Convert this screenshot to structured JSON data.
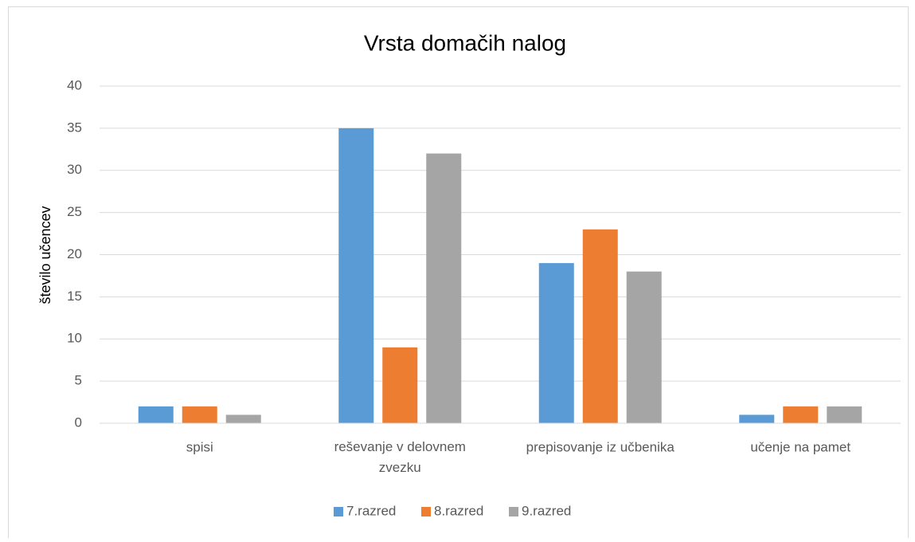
{
  "chart_data": {
    "type": "bar",
    "title": "Vrsta domačih nalog",
    "y_label": "število učencev",
    "categories": [
      "spisi",
      "reševanje v delovnem zvezku",
      "prepisovanje iz učbenika",
      "učenje na pamet"
    ],
    "series": [
      {
        "name": "7.razred",
        "color": "#5b9bd5",
        "values": [
          2,
          35,
          19,
          1
        ]
      },
      {
        "name": "8.razred",
        "color": "#ed7d31",
        "values": [
          2,
          9,
          23,
          2
        ]
      },
      {
        "name": "9.razred",
        "color": "#a5a5a5",
        "values": [
          1,
          32,
          18,
          2
        ]
      }
    ],
    "ylim": [
      0,
      40
    ],
    "yticks": [
      0,
      5,
      10,
      15,
      20,
      25,
      30,
      35,
      40
    ],
    "grid": true,
    "legend": "bottom"
  }
}
